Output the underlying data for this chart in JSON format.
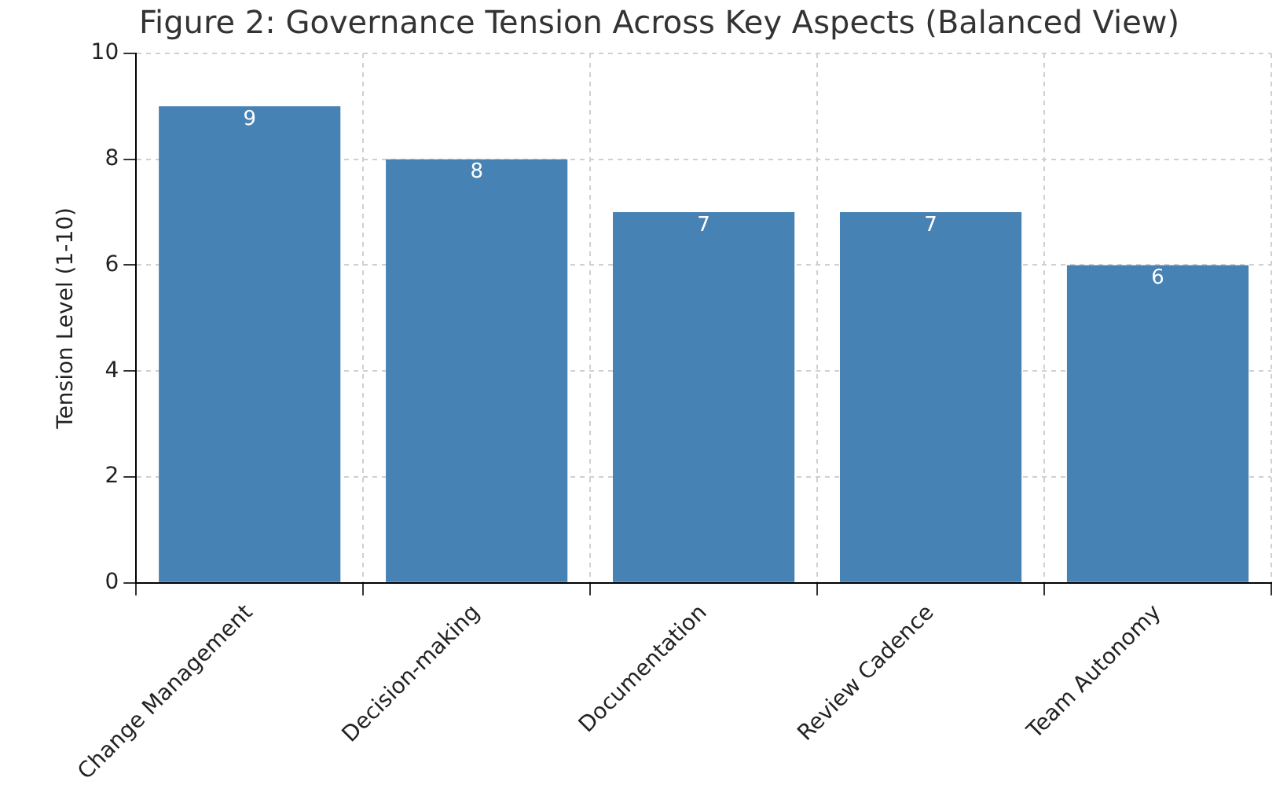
{
  "chart_data": {
    "type": "bar",
    "title": "Figure 2: Governance Tension Across Key Aspects (Balanced View)",
    "ylabel": "Tension Level (1-10)",
    "categories": [
      "Change Management",
      "Decision-making",
      "Documentation",
      "Review Cadence",
      "Team Autonomy"
    ],
    "values": [
      9,
      8,
      7,
      7,
      6
    ],
    "color": "#4682b4",
    "ylim": [
      0,
      10
    ],
    "yticks": [
      0,
      2,
      4,
      6,
      8,
      10
    ],
    "grid": true,
    "data_labels": true
  }
}
